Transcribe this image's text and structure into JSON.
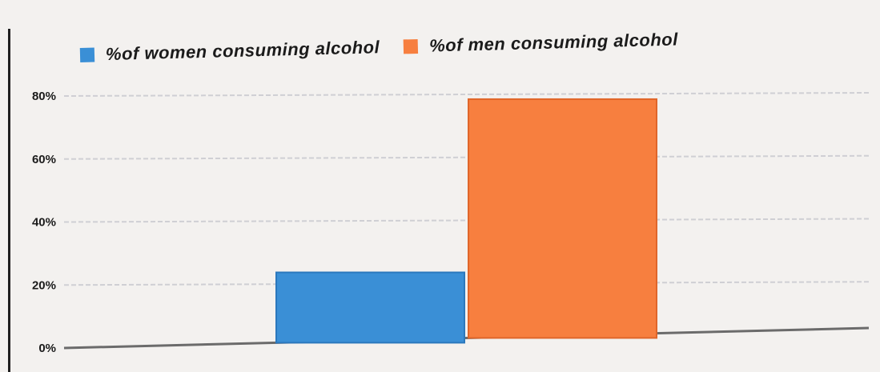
{
  "chart_data": {
    "type": "bar",
    "categories": [
      ""
    ],
    "series": [
      {
        "name": "%of women consuming alcohol",
        "values": [
          24
        ],
        "color": "#3a8fd6"
      },
      {
        "name": "%of men consuming alcohol",
        "values": [
          79
        ],
        "color": "#f77f3f"
      }
    ],
    "ylim": [
      0,
      80
    ],
    "yticks": [
      "0%",
      "20%",
      "40%",
      "60%",
      "80%"
    ],
    "ytick_values": [
      0,
      20,
      40,
      60,
      80
    ],
    "grid": true,
    "legend_position": "top"
  }
}
